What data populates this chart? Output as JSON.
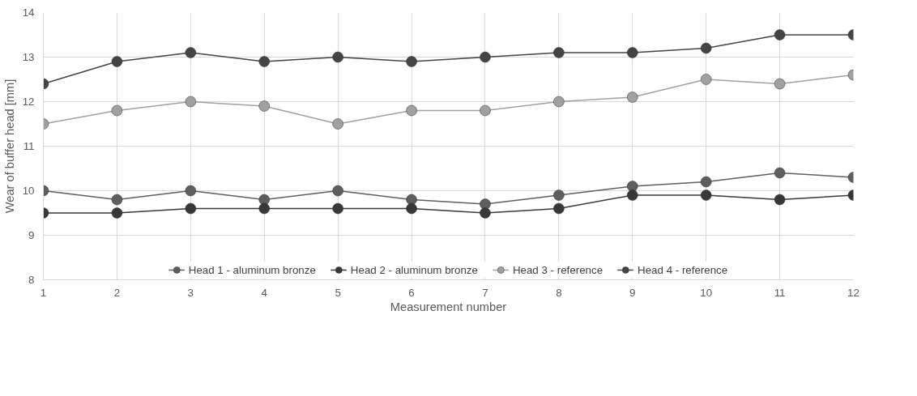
{
  "chart_data": {
    "type": "line",
    "xlabel": "Measurement number",
    "ylabel": "Wear of buffer head [mm]",
    "x": [
      1,
      2,
      3,
      4,
      5,
      6,
      7,
      8,
      9,
      10,
      11,
      12
    ],
    "series": [
      {
        "name": "Head 1 - aluminum bronze",
        "color": "#5e5e5e",
        "values": [
          10.0,
          9.8,
          10.0,
          9.8,
          10.0,
          9.8,
          9.7,
          9.9,
          10.1,
          10.2,
          10.4,
          10.3
        ]
      },
      {
        "name": "Head 2 - aluminum bronze",
        "color": "#383838",
        "values": [
          9.5,
          9.5,
          9.6,
          9.6,
          9.6,
          9.6,
          9.5,
          9.6,
          9.9,
          9.9,
          9.8,
          9.9
        ]
      },
      {
        "name": "Head 3 - reference",
        "color": "#a0a0a0",
        "values": [
          11.5,
          11.8,
          12.0,
          11.9,
          11.5,
          11.8,
          11.8,
          12.0,
          12.1,
          12.5,
          12.4,
          12.6
        ]
      },
      {
        "name": "Head 4 - reference",
        "color": "#444444",
        "values": [
          12.4,
          12.9,
          13.1,
          12.9,
          13.0,
          12.9,
          13.0,
          13.1,
          13.1,
          13.2,
          13.5,
          13.5
        ]
      }
    ],
    "xlim": [
      1,
      12
    ],
    "xticks": [
      1,
      2,
      3,
      4,
      5,
      6,
      7,
      8,
      9,
      10,
      11,
      12
    ],
    "ylim": [
      8,
      14
    ],
    "yticks": [
      8,
      9,
      10,
      11,
      12,
      13,
      14
    ],
    "grid": true,
    "legend": "bottom",
    "marker": "circle",
    "line_style": "solid"
  }
}
